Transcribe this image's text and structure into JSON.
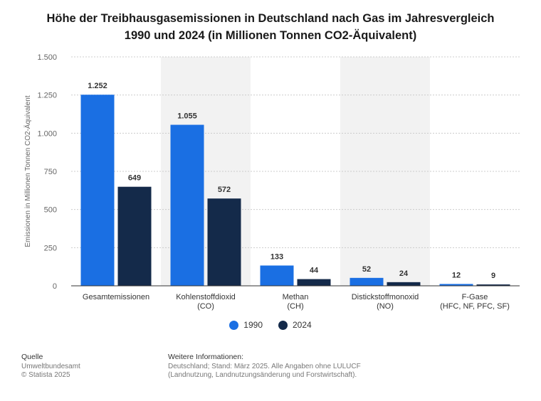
{
  "title_line1": "Höhe der Treibhausgasemissionen in Deutschland nach Gas im Jahresvergleich",
  "title_line2": "1990 und 2024 (in Millionen Tonnen CO2-Äquivalent)",
  "colors": {
    "s1990": "#1a6fe3",
    "s2024": "#142a4a",
    "band": "#f2f2f2",
    "grid": "#cccccc"
  },
  "legend": [
    {
      "label": "1990",
      "color": "#1a6fe3"
    },
    {
      "label": "2024",
      "color": "#142a4a"
    }
  ],
  "source": {
    "heading": "Quelle",
    "line1": "Umweltbundesamt",
    "line2": "© Statista 2025"
  },
  "info": {
    "heading": "Weitere Informationen:",
    "line1": "Deutschland; Stand: März 2025. Alle Angaben ohne LULUCF",
    "line2": "(Landnutzung, Landnutzungsänderung und Forstwirtschaft)."
  },
  "chart_data": {
    "type": "bar",
    "categories": [
      [
        "Gesamtemissionen"
      ],
      [
        "Kohlenstoffdioxid",
        "(CO)"
      ],
      [
        "Methan",
        "(CH)"
      ],
      [
        "Distickstoffmonoxid",
        "(NO)"
      ],
      [
        "F-Gase",
        "(HFC, NF, PFC, SF)"
      ]
    ],
    "series": [
      {
        "name": "1990",
        "values": [
          1252,
          1055,
          133,
          52,
          12
        ],
        "labels": [
          "1.252",
          "1.055",
          "133",
          "52",
          "12"
        ]
      },
      {
        "name": "2024",
        "values": [
          649,
          572,
          44,
          24,
          9
        ],
        "labels": [
          "649",
          "572",
          "44",
          "24",
          "9"
        ]
      }
    ],
    "ylabel": "Emissionen in Millionen Tonnen CO2-Äquivalent",
    "ylim": [
      0,
      1500
    ],
    "yticks": [
      0,
      250,
      500,
      750,
      1000,
      1250,
      1500
    ],
    "ytick_labels": [
      "0",
      "250",
      "500",
      "750",
      "1.000",
      "1.250",
      "1.500"
    ],
    "grid": true
  }
}
